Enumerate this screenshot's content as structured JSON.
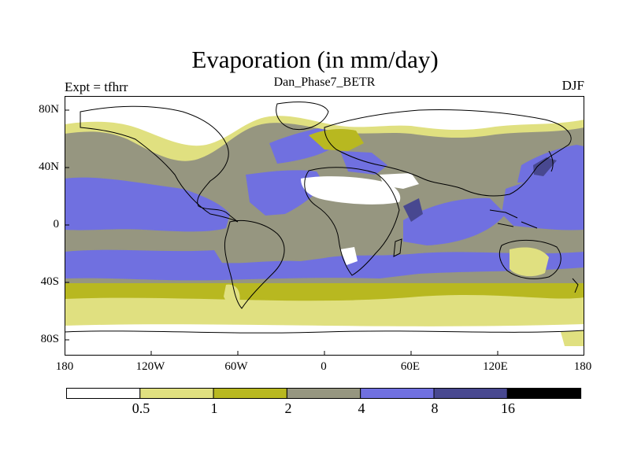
{
  "map": {
    "title": "Evaporation (in mm/day)",
    "subtitle": "Dan_Phase7_BETR",
    "left_label": "Expt = tfhrr",
    "right_label": "DJF",
    "lat_labels": [
      "80N",
      "40N",
      "0",
      "40S",
      "80S"
    ],
    "lon_labels": [
      "180",
      "120W",
      "60W",
      "0",
      "60E",
      "120E",
      "180"
    ]
  },
  "colorbar": {
    "levels": [
      "0.5",
      "1",
      "2",
      "4",
      "8",
      "16"
    ],
    "colors": [
      "#ffffff",
      "#e0e080",
      "#b8b820",
      "#969680",
      "#7070e0",
      "#484890",
      "#000000"
    ]
  }
}
